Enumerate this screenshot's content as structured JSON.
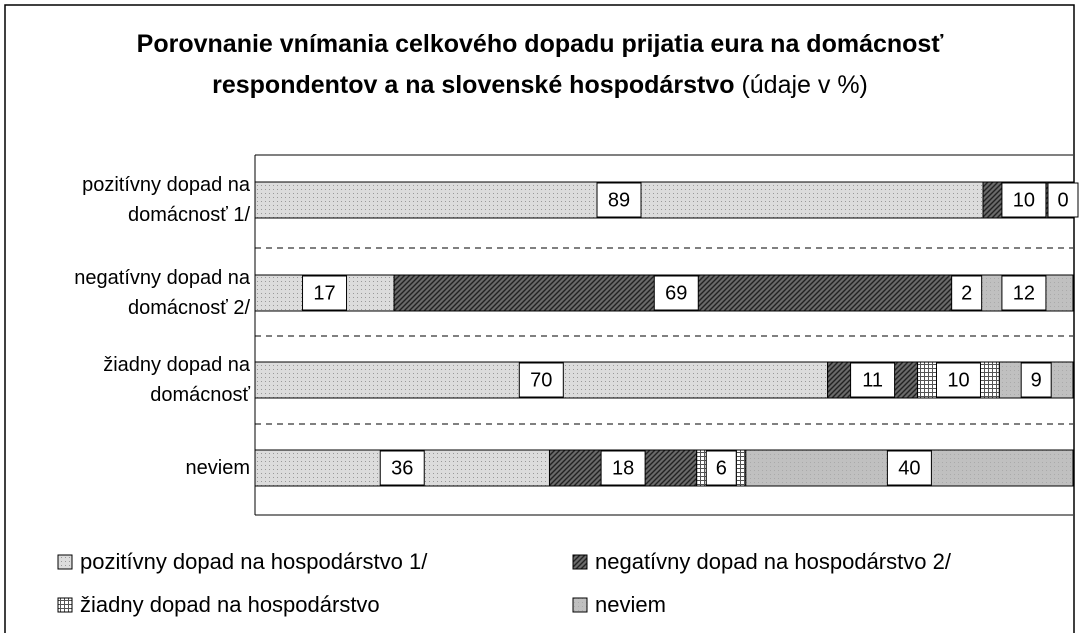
{
  "chart_data": {
    "type": "stacked_barh",
    "title": "Porovnanie vnímania celkového dopadu prijatia eura na domácnosť respondentov a na slovenské hospodárstvo",
    "subtitle": "(údaje v %)",
    "categories": [
      "pozitívny dopad na domácnosť 1/",
      "negatívny dopad na domácnosť 2/",
      "žiadny dopad na domácnosť",
      "neviem"
    ],
    "series": [
      {
        "name": "pozitívny dopad na hospodárstvo 1/",
        "color": "#dcdcdc",
        "values": [
          89,
          17,
          70,
          36
        ]
      },
      {
        "name": "negatívny dopad na hospodárstvo 2/",
        "color": "#6a6a6a",
        "values": [
          10,
          69,
          11,
          18
        ]
      },
      {
        "name": "žiadny dopad na hospodárstvo",
        "color": "#ffffff",
        "values": [
          1,
          2,
          10,
          6
        ]
      },
      {
        "name": "neviem",
        "color": "#c0c0c0",
        "values": [
          0,
          12,
          9,
          40
        ]
      }
    ],
    "xlim": [
      0,
      100
    ],
    "legend": "bottom"
  }
}
